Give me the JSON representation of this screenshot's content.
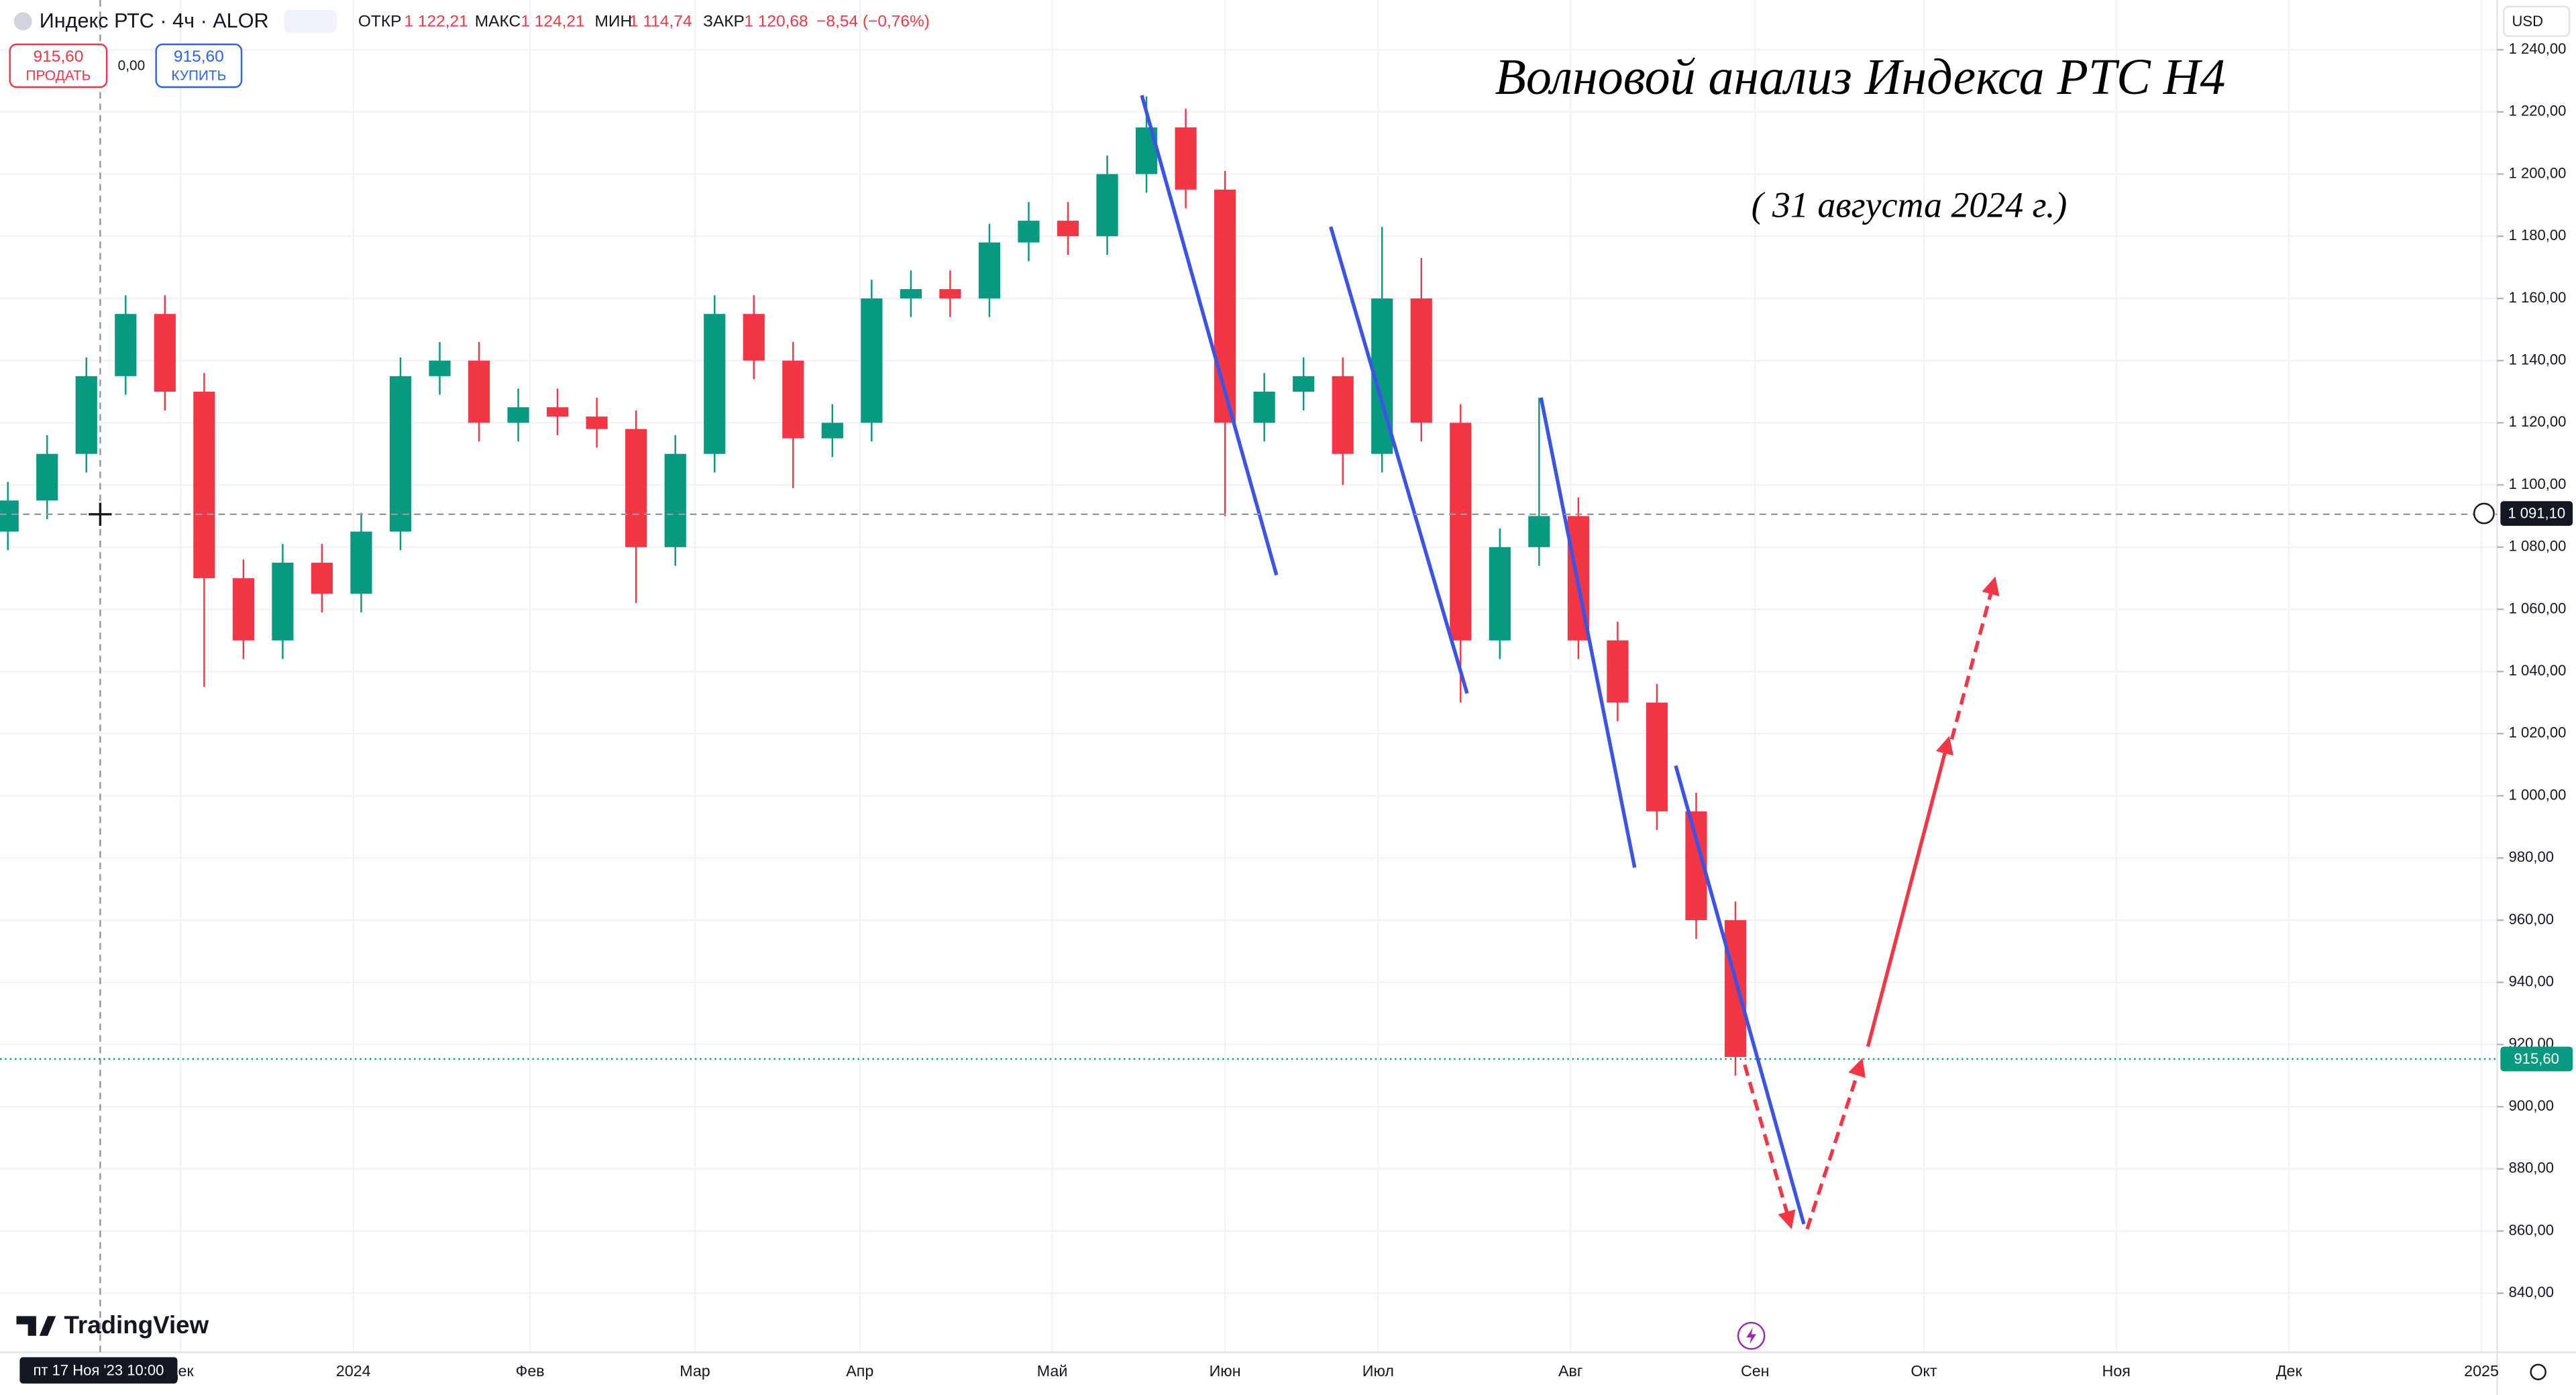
{
  "header": {
    "symbol": "Индекс РТС · 4ч · ALOR",
    "open_label": "ОТКР",
    "open": "1 122,21",
    "high_label": "МАКС",
    "high": "1 124,21",
    "low_label": "МИН",
    "low": "1 114,74",
    "close_label": "ЗАКР",
    "close": "1 120,68",
    "change": "−8,54 (−0,76%)",
    "sell_price": "915,60",
    "sell": "ПРОДАТЬ",
    "spread": "0,00",
    "buy_price": "915,60",
    "buy": "КУПИТЬ",
    "currency": "USD",
    "brand": "TradingView"
  },
  "ui": {
    "crosshair_price": "1 091,10",
    "crosshair_date": "пт 17 Ноя '23 10:00",
    "last_price": "915,60"
  },
  "chart_data": {
    "type": "candlestick",
    "title": "Волновой анализ Индекса РТС Н4",
    "subtitle": "( 31 августа 2024 г.)",
    "up_color": "#089981",
    "down_color": "#f23645",
    "grid": true,
    "categories": [
      null,
      null,
      null,
      null,
      null,
      null,
      null,
      null,
      null,
      null,
      null,
      null,
      null,
      null,
      null,
      null,
      null,
      null,
      null,
      null,
      null,
      null,
      null,
      null,
      null,
      null,
      null,
      null,
      null,
      null,
      null,
      null,
      null,
      null,
      null,
      null,
      null,
      null,
      null,
      null,
      null,
      null,
      null,
      null,
      null
    ],
    "open": [
      1085,
      1095,
      1110,
      1135,
      1155,
      1130,
      1070,
      1050,
      1075,
      1065,
      1085,
      1135,
      1140,
      1120,
      1125,
      1122,
      1118,
      1080,
      1110,
      1155,
      1140,
      1115,
      1120,
      1160,
      1163,
      1160,
      1178,
      1185,
      1180,
      1200,
      1215,
      1195,
      1120,
      1130,
      1135,
      1110,
      1160,
      1120,
      1050,
      1080,
      1090,
      1050,
      1030,
      995,
      960
    ],
    "high": [
      1101,
      1116,
      1141,
      1161,
      1161,
      1136,
      1076,
      1081,
      1081,
      1091,
      1141,
      1146,
      1146,
      1131,
      1131,
      1128,
      1124,
      1116,
      1161,
      1161,
      1146,
      1126,
      1166,
      1169,
      1169,
      1184,
      1191,
      1191,
      1206,
      1225,
      1221,
      1201,
      1136,
      1141,
      1141,
      1183,
      1173,
      1126,
      1086,
      1128,
      1096,
      1056,
      1036,
      1001,
      966
    ],
    "low": [
      1079,
      1089,
      1104,
      1129,
      1124,
      1035,
      1044,
      1044,
      1059,
      1059,
      1079,
      1129,
      1114,
      1114,
      1116,
      1112,
      1062,
      1074,
      1104,
      1134,
      1099,
      1109,
      1114,
      1154,
      1154,
      1154,
      1172,
      1174,
      1174,
      1194,
      1189,
      1090,
      1114,
      1124,
      1100,
      1104,
      1114,
      1030,
      1044,
      1074,
      1044,
      1024,
      989,
      954,
      910
    ],
    "close": [
      1095,
      1110,
      1135,
      1155,
      1130,
      1070,
      1050,
      1075,
      1065,
      1085,
      1135,
      1140,
      1120,
      1125,
      1122,
      1118,
      1080,
      1110,
      1155,
      1140,
      1115,
      1120,
      1160,
      1163,
      1160,
      1178,
      1185,
      1180,
      1200,
      1215,
      1195,
      1120,
      1130,
      1135,
      1110,
      1160,
      1120,
      1050,
      1080,
      1090,
      1050,
      1030,
      995,
      960,
      916
    ],
    "xlim": [
      -0.2,
      63.4
    ],
    "xticks": [
      {
        "value": 4.4,
        "label": "Дек"
      },
      {
        "value": 8.8,
        "label": "2024"
      },
      {
        "value": 13.3,
        "label": "Фев"
      },
      {
        "value": 17.5,
        "label": "Мар"
      },
      {
        "value": 21.7,
        "label": "Апр"
      },
      {
        "value": 26.6,
        "label": "Май"
      },
      {
        "value": 31.0,
        "label": "Июн"
      },
      {
        "value": 34.9,
        "label": "Июл"
      },
      {
        "value": 39.8,
        "label": "Авг"
      },
      {
        "value": 44.5,
        "label": "Сен"
      },
      {
        "value": 48.8,
        "label": "Окт"
      },
      {
        "value": 53.7,
        "label": "Ноя"
      },
      {
        "value": 58.1,
        "label": "Дек"
      },
      {
        "value": 63.0,
        "label": "2025"
      }
    ],
    "ylim": [
      821,
      1256
    ],
    "yticks": [
      {
        "value": 840,
        "label": "840,00"
      },
      {
        "value": 860,
        "label": "860,00"
      },
      {
        "value": 880,
        "label": "880,00"
      },
      {
        "value": 900,
        "label": "900,00"
      },
      {
        "value": 920,
        "label": "920,00"
      },
      {
        "value": 940,
        "label": "940,00"
      },
      {
        "value": 960,
        "label": "960,00"
      },
      {
        "value": 980,
        "label": "980,00"
      },
      {
        "value": 1000,
        "label": "1 000,00"
      },
      {
        "value": 1020,
        "label": "1 020,00"
      },
      {
        "value": 1040,
        "label": "1 040,00"
      },
      {
        "value": 1060,
        "label": "1 060,00"
      },
      {
        "value": 1080,
        "label": "1 080,00"
      },
      {
        "value": 1100,
        "label": "1 100,00"
      },
      {
        "value": 1120,
        "label": "1 120,00"
      },
      {
        "value": 1140,
        "label": "1 140,00"
      },
      {
        "value": 1160,
        "label": "1 160,00"
      },
      {
        "value": 1180,
        "label": "1 180,00"
      },
      {
        "value": 1200,
        "label": "1 200,00"
      },
      {
        "value": 1220,
        "label": "1 220,00"
      },
      {
        "value": 1240,
        "label": "1 240,00"
      }
    ]
  }
}
